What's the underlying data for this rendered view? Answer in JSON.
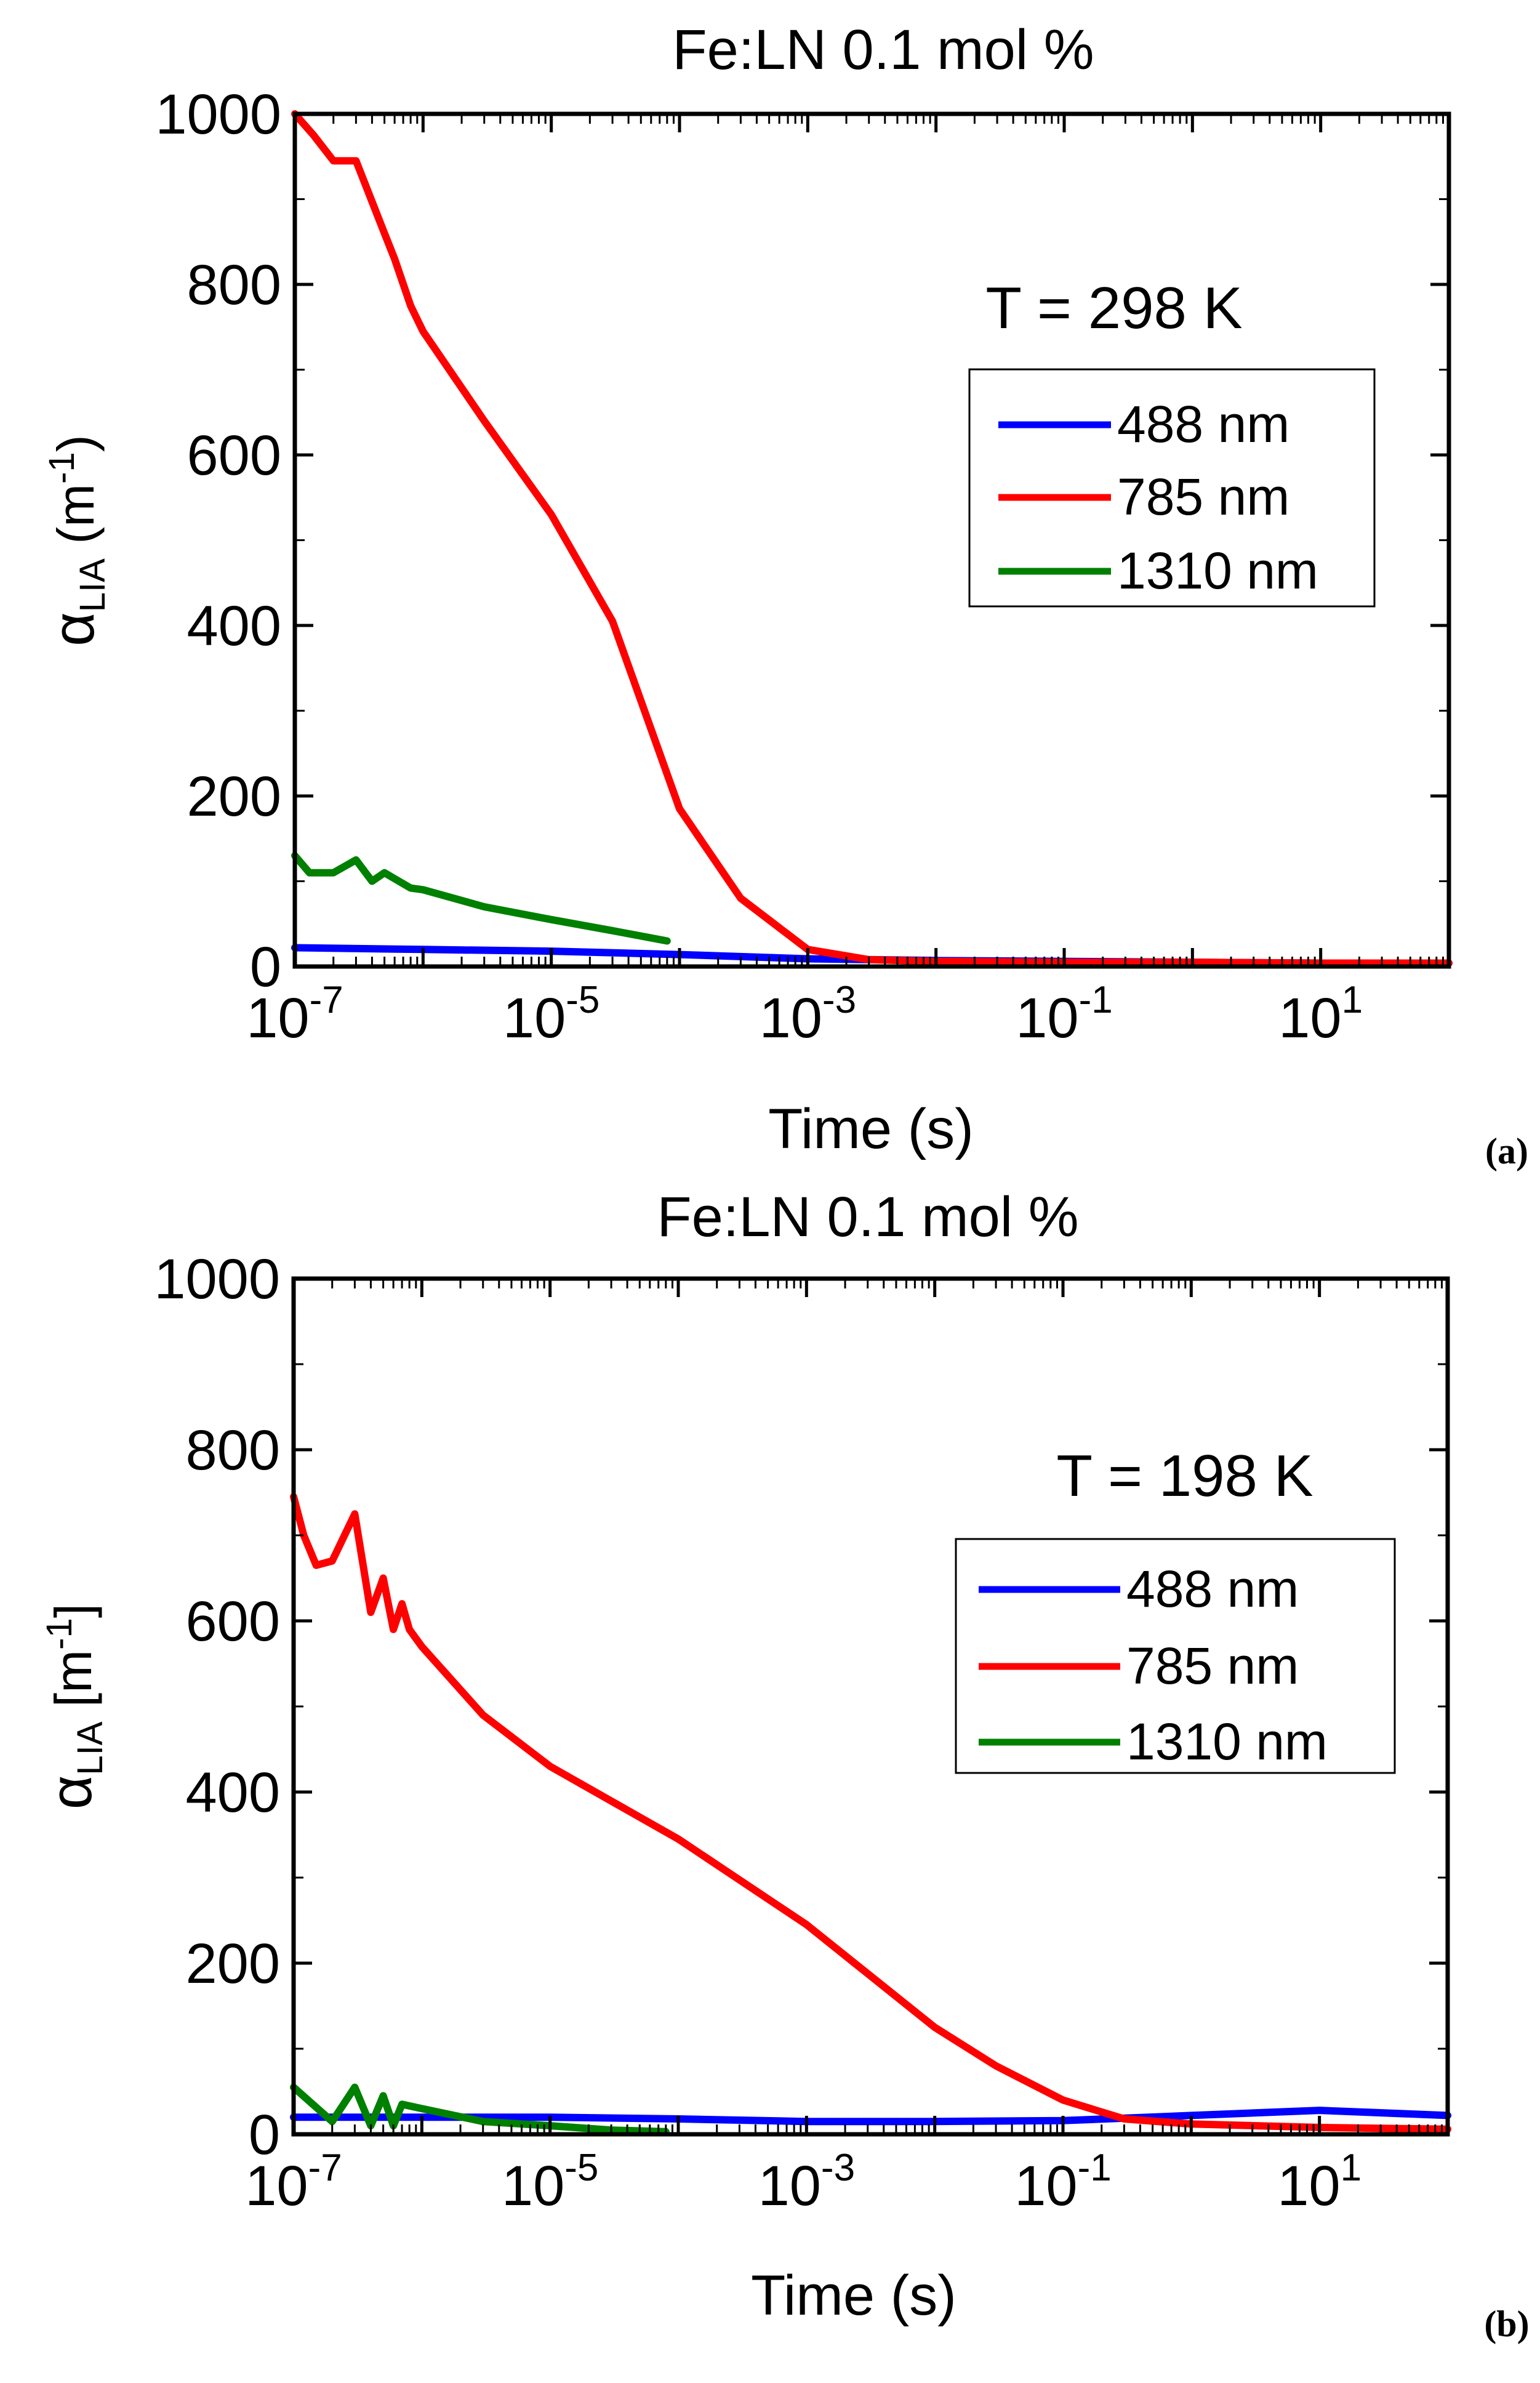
{
  "colors": {
    "blue": "#0000ff",
    "red": "#ff0000",
    "green": "#008000"
  },
  "chart_data": [
    {
      "type": "line",
      "panel_label": "(a)",
      "title": "Fe:LN 0.1 mol %",
      "xlabel": "Time (s)",
      "ylabel_symbol": "α",
      "ylabel_sub": "LIA",
      "ylabel_unit_open": " (m",
      "ylabel_unit_sup": "-1",
      "ylabel_unit_close": ")",
      "x_scale": "log",
      "xlim": [
        1e-07,
        100
      ],
      "ylim": [
        0,
        1000
      ],
      "x_ticks": [
        {
          "base": "10",
          "exp": "-7",
          "v": 1e-07
        },
        {
          "base": "10",
          "exp": "-5",
          "v": 1e-05
        },
        {
          "base": "10",
          "exp": "-3",
          "v": 0.001
        },
        {
          "base": "10",
          "exp": "-1",
          "v": 0.1
        },
        {
          "base": "10",
          "exp": "1",
          "v": 10
        }
      ],
      "y_ticks": [
        "0",
        "200",
        "400",
        "600",
        "800",
        "1000"
      ],
      "annotation": "T = 298 K",
      "legend": [
        "488 nm",
        "785 nm",
        "1310 nm"
      ],
      "legend_position": "right",
      "series": [
        {
          "name": "488 nm",
          "color": "#0000ff",
          "points": [
            [
              1e-07,
              22
            ],
            [
              1e-06,
              20
            ],
            [
              1e-05,
              18
            ],
            [
              0.0001,
              14
            ],
            [
              0.001,
              9
            ],
            [
              0.01,
              7
            ],
            [
              0.1,
              6
            ],
            [
              1,
              5
            ],
            [
              10,
              4
            ],
            [
              100,
              4
            ]
          ]
        },
        {
          "name": "785 nm",
          "color": "#ff0000",
          "points": [
            [
              1e-07,
              1000
            ],
            [
              1.4e-07,
              975
            ],
            [
              2e-07,
              945
            ],
            [
              3e-07,
              945
            ],
            [
              5e-07,
              860
            ],
            [
              6e-07,
              830
            ],
            [
              8e-07,
              775
            ],
            [
              1e-06,
              745
            ],
            [
              3e-06,
              640
            ],
            [
              1e-05,
              530
            ],
            [
              3e-05,
              405
            ],
            [
              0.0001,
              185
            ],
            [
              0.0003,
              80
            ],
            [
              0.001,
              20
            ],
            [
              0.003,
              8
            ],
            [
              0.01,
              6
            ],
            [
              0.1,
              5
            ],
            [
              1,
              5
            ],
            [
              10,
              4
            ],
            [
              100,
              4
            ]
          ]
        },
        {
          "name": "1310 nm",
          "color": "#008000",
          "points": [
            [
              1e-07,
              130
            ],
            [
              1.3e-07,
              110
            ],
            [
              2e-07,
              110
            ],
            [
              3e-07,
              125
            ],
            [
              4e-07,
              100
            ],
            [
              5e-07,
              110
            ],
            [
              8e-07,
              92
            ],
            [
              1e-06,
              90
            ],
            [
              3e-06,
              70
            ],
            [
              1e-05,
              55
            ],
            [
              3e-05,
              42
            ],
            [
              8e-05,
              30
            ]
          ]
        }
      ]
    },
    {
      "type": "line",
      "panel_label": "(b)",
      "title": "Fe:LN 0.1 mol %",
      "xlabel": "Time (s)",
      "ylabel_symbol": "α",
      "ylabel_sub": "LIA",
      "ylabel_unit_open": " [m",
      "ylabel_unit_sup": "-1",
      "ylabel_unit_close": "]",
      "x_scale": "log",
      "xlim": [
        1e-07,
        100
      ],
      "ylim": [
        0,
        1000
      ],
      "x_ticks": [
        {
          "base": "10",
          "exp": "-7",
          "v": 1e-07
        },
        {
          "base": "10",
          "exp": "-5",
          "v": 1e-05
        },
        {
          "base": "10",
          "exp": "-3",
          "v": 0.001
        },
        {
          "base": "10",
          "exp": "-1",
          "v": 0.1
        },
        {
          "base": "10",
          "exp": "1",
          "v": 10
        }
      ],
      "y_ticks": [
        "0",
        "200",
        "400",
        "600",
        "800",
        "1000"
      ],
      "annotation": "T = 198 K",
      "legend": [
        "488 nm",
        "785 nm",
        "1310 nm"
      ],
      "legend_position": "right",
      "series": [
        {
          "name": "488 nm",
          "color": "#0000ff",
          "points": [
            [
              1e-07,
              20
            ],
            [
              1e-06,
              20
            ],
            [
              1e-05,
              20
            ],
            [
              0.0001,
              18
            ],
            [
              0.001,
              15
            ],
            [
              0.01,
              15
            ],
            [
              0.1,
              16
            ],
            [
              1,
              22
            ],
            [
              10,
              28
            ],
            [
              100,
              22
            ]
          ]
        },
        {
          "name": "785 nm",
          "color": "#ff0000",
          "points": [
            [
              1e-07,
              745
            ],
            [
              1.2e-07,
              700
            ],
            [
              1.5e-07,
              665
            ],
            [
              2e-07,
              670
            ],
            [
              3e-07,
              725
            ],
            [
              4e-07,
              610
            ],
            [
              5e-07,
              650
            ],
            [
              6e-07,
              590
            ],
            [
              7e-07,
              620
            ],
            [
              8e-07,
              590
            ],
            [
              1e-06,
              570
            ],
            [
              3e-06,
              490
            ],
            [
              1e-05,
              430
            ],
            [
              0.0001,
              345
            ],
            [
              0.001,
              245
            ],
            [
              0.01,
              125
            ],
            [
              0.03,
              80
            ],
            [
              0.1,
              40
            ],
            [
              0.3,
              18
            ],
            [
              1,
              12
            ],
            [
              10,
              8
            ],
            [
              100,
              6
            ]
          ]
        },
        {
          "name": "1310 nm",
          "color": "#008000",
          "points": [
            [
              1e-07,
              55
            ],
            [
              2e-07,
              15
            ],
            [
              3e-07,
              55
            ],
            [
              4e-07,
              10
            ],
            [
              5e-07,
              45
            ],
            [
              6e-07,
              10
            ],
            [
              7e-07,
              35
            ],
            [
              1e-06,
              30
            ],
            [
              3e-06,
              15
            ],
            [
              1e-05,
              10
            ],
            [
              3e-05,
              5
            ],
            [
              8e-05,
              3
            ]
          ]
        }
      ]
    }
  ]
}
